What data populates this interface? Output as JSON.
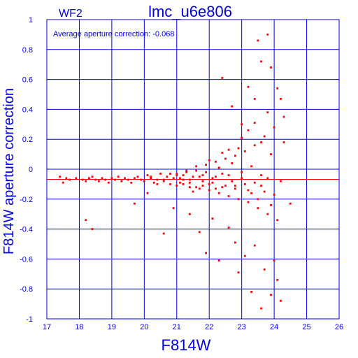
{
  "chart_data": {
    "type": "scatter",
    "title": "lmc_u6e806",
    "subtitle": "WF2",
    "xlabel": "F814W",
    "ylabel": "F814W aperture correction",
    "annotation": "Average aperture correction: -0.068",
    "xlim": [
      17,
      26
    ],
    "ylim": [
      -1,
      1
    ],
    "xticks": [
      17,
      18,
      19,
      20,
      21,
      22,
      23,
      24,
      25,
      26
    ],
    "yticks": [
      -1,
      -0.8,
      -0.6,
      -0.4,
      -0.2,
      0,
      0.2,
      0.4,
      0.6,
      0.8,
      1
    ],
    "grid": true,
    "reference_line": -0.068,
    "colors": {
      "axis": "#0000e6",
      "points": "#ff0000",
      "reference_line": "#ff0000",
      "background": "#ffffff"
    },
    "series": [
      {
        "points": [
          [
            17.4,
            -0.05
          ],
          [
            17.5,
            -0.09
          ],
          [
            17.6,
            -0.06
          ],
          [
            17.7,
            -0.07
          ],
          [
            17.9,
            -0.06
          ],
          [
            18.1,
            -0.07
          ],
          [
            18.2,
            -0.08
          ],
          [
            18.3,
            -0.06
          ],
          [
            18.4,
            -0.05
          ],
          [
            18.5,
            -0.07
          ],
          [
            18.6,
            -0.08
          ],
          [
            18.7,
            -0.06
          ],
          [
            18.8,
            -0.07
          ],
          [
            18.9,
            -0.09
          ],
          [
            19.0,
            -0.06
          ],
          [
            19.1,
            -0.07
          ],
          [
            19.2,
            -0.05
          ],
          [
            19.3,
            -0.08
          ],
          [
            19.4,
            -0.06
          ],
          [
            19.5,
            -0.07
          ],
          [
            19.6,
            -0.09
          ],
          [
            19.7,
            -0.06
          ],
          [
            19.8,
            -0.05
          ],
          [
            19.9,
            -0.07
          ],
          [
            20.0,
            -0.08
          ],
          [
            20.1,
            -0.04
          ],
          [
            20.2,
            -0.06
          ],
          [
            20.3,
            -0.09
          ],
          [
            20.4,
            -0.07
          ],
          [
            20.5,
            -0.03
          ],
          [
            20.6,
            -0.08
          ],
          [
            20.7,
            -0.05
          ],
          [
            20.8,
            -0.1
          ],
          [
            20.9,
            -0.06
          ],
          [
            21.0,
            -0.04
          ],
          [
            21.1,
            -0.09
          ],
          [
            21.2,
            -0.07
          ],
          [
            21.3,
            -0.02
          ],
          [
            21.4,
            -0.12
          ],
          [
            21.5,
            -0.05
          ],
          [
            21.6,
            -0.01
          ],
          [
            21.7,
            -0.13
          ],
          [
            21.8,
            -0.04
          ],
          [
            21.9,
            0.03
          ],
          [
            22.0,
            -0.14
          ],
          [
            22.1,
            -0.06
          ],
          [
            22.2,
            0.05
          ],
          [
            22.3,
            -0.16
          ],
          [
            22.4,
            -0.03
          ],
          [
            22.5,
            0.07
          ],
          [
            22.6,
            -0.18
          ],
          [
            22.7,
            -0.08
          ],
          [
            22.8,
            0.09
          ],
          [
            22.9,
            -0.2
          ],
          [
            23.0,
            -0.06
          ],
          [
            23.1,
            0.12
          ],
          [
            23.2,
            -0.22
          ],
          [
            23.3,
            0.02
          ],
          [
            23.4,
            0.16
          ],
          [
            23.5,
            -0.26
          ],
          [
            23.6,
            -0.04
          ],
          [
            23.7,
            0.22
          ],
          [
            23.8,
            -0.3
          ],
          [
            23.9,
            0.1
          ],
          [
            24.0,
            0.28
          ],
          [
            24.1,
            -0.34
          ],
          [
            24.2,
            -0.08
          ],
          [
            24.3,
            0.35
          ],
          [
            18.2,
            -0.34
          ],
          [
            18.4,
            -0.4
          ],
          [
            19.7,
            -0.23
          ],
          [
            20.1,
            -0.16
          ],
          [
            20.6,
            -0.43
          ],
          [
            20.9,
            -0.26
          ],
          [
            21.4,
            -0.3
          ],
          [
            21.7,
            -0.42
          ],
          [
            21.9,
            -0.56
          ],
          [
            22.1,
            -0.33
          ],
          [
            22.3,
            -0.61
          ],
          [
            22.6,
            -0.39
          ],
          [
            22.8,
            -0.49
          ],
          [
            22.9,
            -0.69
          ],
          [
            23.1,
            -0.58
          ],
          [
            23.3,
            -0.82
          ],
          [
            23.4,
            -0.51
          ],
          [
            23.6,
            -0.93
          ],
          [
            23.7,
            -0.67
          ],
          [
            23.9,
            -0.84
          ],
          [
            24.0,
            -0.61
          ],
          [
            24.1,
            -0.74
          ],
          [
            24.2,
            -0.88
          ],
          [
            24.5,
            -0.23
          ],
          [
            22.4,
            0.61
          ],
          [
            22.7,
            0.42
          ],
          [
            23.0,
            0.3
          ],
          [
            23.2,
            0.55
          ],
          [
            23.4,
            0.47
          ],
          [
            23.5,
            0.86
          ],
          [
            23.6,
            0.72
          ],
          [
            23.8,
            0.9
          ],
          [
            23.9,
            0.68
          ],
          [
            24.1,
            0.54
          ],
          [
            24.2,
            0.47
          ],
          [
            24.3,
            0.18
          ],
          [
            21.0,
            -0.03
          ],
          [
            21.1,
            -0.06
          ],
          [
            21.2,
            -0.1
          ],
          [
            21.3,
            -0.01
          ],
          [
            21.4,
            -0.07
          ],
          [
            21.5,
            -0.15
          ],
          [
            21.6,
            0.02
          ],
          [
            21.7,
            -0.05
          ],
          [
            21.8,
            -0.11
          ],
          [
            21.9,
            -0.02
          ],
          [
            22.0,
            0.06
          ],
          [
            22.1,
            -0.09
          ],
          [
            22.2,
            -0.13
          ],
          [
            22.3,
            0.01
          ],
          [
            22.4,
            0.11
          ],
          [
            22.5,
            -0.11
          ],
          [
            22.6,
            0.13
          ],
          [
            22.7,
            0.04
          ],
          [
            22.8,
            -0.13
          ],
          [
            22.9,
            0.14
          ],
          [
            23.0,
            0.21
          ],
          [
            23.1,
            -0.1
          ],
          [
            23.2,
            0.26
          ],
          [
            23.3,
            -0.16
          ],
          [
            23.4,
            0.31
          ],
          [
            23.5,
            -0.2
          ],
          [
            23.6,
            0.18
          ],
          [
            23.7,
            -0.15
          ],
          [
            23.8,
            0.38
          ],
          [
            23.9,
            -0.24
          ],
          [
            20.2,
            -0.05
          ],
          [
            20.4,
            -0.1
          ],
          [
            20.6,
            -0.07
          ],
          [
            20.8,
            -0.03
          ],
          [
            21.0,
            -0.11
          ],
          [
            21.2,
            -0.04
          ],
          [
            21.4,
            -0.09
          ],
          [
            21.6,
            -0.12
          ],
          [
            21.8,
            -0.08
          ],
          [
            22.0,
            -0.1
          ],
          [
            22.2,
            -0.05
          ],
          [
            22.4,
            -0.12
          ],
          [
            22.6,
            -0.04
          ],
          [
            22.8,
            -0.11
          ],
          [
            23.0,
            -0.02
          ],
          [
            23.2,
            -0.14
          ],
          [
            23.4,
            -0.09
          ],
          [
            23.6,
            -0.11
          ],
          [
            23.8,
            -0.06
          ],
          [
            24.0,
            -0.17
          ]
        ]
      }
    ]
  }
}
